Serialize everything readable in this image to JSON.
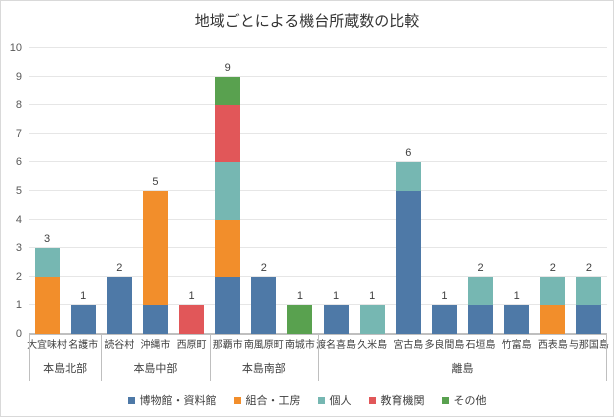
{
  "chart_data": {
    "type": "bar",
    "stacked": true,
    "title": "地域ごとによる機台所蔵数の比較",
    "categories": [
      "大宜味村",
      "名護市",
      "読谷村",
      "沖縄市",
      "西原町",
      "那覇市",
      "南風原町",
      "南城市",
      "渡名喜島",
      "久米島",
      "宮古島",
      "多良間島",
      "石垣島",
      "竹富島",
      "西表島",
      "与那国島"
    ],
    "groups": [
      {
        "label": "本島北部",
        "span": 2
      },
      {
        "label": "本島中部",
        "span": 3
      },
      {
        "label": "本島南部",
        "span": 3
      },
      {
        "label": "離島",
        "span": 8
      }
    ],
    "series": [
      {
        "name": "博物館・資料館",
        "color": "#4E79A7",
        "values": [
          0,
          1,
          2,
          1,
          0,
          2,
          2,
          0,
          1,
          0,
          5,
          1,
          1,
          1,
          0,
          1
        ]
      },
      {
        "name": "組合・工房",
        "color": "#F28E2B",
        "values": [
          2,
          0,
          0,
          4,
          0,
          2,
          0,
          0,
          0,
          0,
          0,
          0,
          0,
          0,
          1,
          0
        ]
      },
      {
        "name": "個人",
        "color": "#76B7B2",
        "values": [
          1,
          0,
          0,
          0,
          0,
          2,
          0,
          0,
          0,
          1,
          1,
          0,
          1,
          0,
          1,
          1
        ]
      },
      {
        "name": "教育機関",
        "color": "#E15759",
        "values": [
          0,
          0,
          0,
          0,
          1,
          2,
          0,
          0,
          0,
          0,
          0,
          0,
          0,
          0,
          0,
          0
        ]
      },
      {
        "name": "その他",
        "color": "#59A14F",
        "values": [
          0,
          0,
          0,
          0,
          0,
          1,
          0,
          1,
          0,
          0,
          0,
          0,
          0,
          0,
          0,
          0
        ]
      }
    ],
    "totals": [
      3,
      1,
      2,
      5,
      1,
      9,
      2,
      1,
      1,
      1,
      6,
      1,
      2,
      1,
      2,
      2
    ],
    "xlabel": "",
    "ylabel": "",
    "ylim": [
      0,
      10
    ],
    "ytick_step": 1,
    "grid": true,
    "legend_position": "bottom"
  },
  "colors": {
    "background": "#FFFFFF",
    "border": "#D9D9D9",
    "gridline": "#E6E6E6",
    "axis_line": "#BFBFBF",
    "tick_text": "#595959",
    "label_text": "#404040",
    "title_text": "#333333"
  }
}
